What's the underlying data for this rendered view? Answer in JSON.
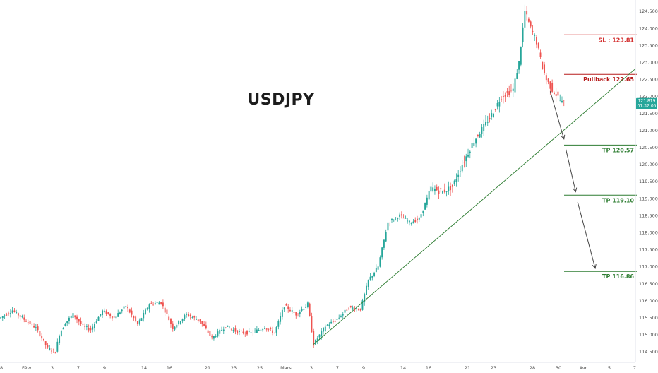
{
  "chart_data": {
    "type": "candlestick",
    "title": "USDJPY",
    "ylim": [
      114.25,
      124.75
    ],
    "y_ticks": [
      "114.500",
      "115.000",
      "115.500",
      "116.000",
      "116.500",
      "117.000",
      "117.500",
      "118.000",
      "118.500",
      "119.000",
      "119.500",
      "120.000",
      "120.500",
      "121.000",
      "121.500",
      "122.000",
      "122.500",
      "123.000",
      "123.500",
      "124.000",
      "124.500"
    ],
    "x_ticks": [
      "28",
      "Févr",
      "3",
      "7",
      "9",
      "14",
      "16",
      "21",
      "23",
      "25",
      "Mars",
      "3",
      "7",
      "9",
      "14",
      "16",
      "21",
      "23",
      "28",
      "30",
      "Avr",
      "5",
      "7"
    ],
    "current_price": {
      "value": "121.819",
      "countdown": "01:32:05",
      "color": "#26a69a"
    },
    "levels": [
      {
        "name": "SL : 123.81",
        "value": 123.81,
        "color": "#d32f2f"
      },
      {
        "name": "Pullback 122.65",
        "value": 122.65,
        "color": "#b71c1c"
      },
      {
        "name": "TP 120.57",
        "value": 120.57,
        "color": "#2e7d32"
      },
      {
        "name": "TP 119.10",
        "value": 119.1,
        "color": "#2e7d32"
      },
      {
        "name": "TP 116.86",
        "value": 116.86,
        "color": "#2e7d32"
      }
    ],
    "trendline": {
      "start": {
        "bar": 160,
        "price": 114.72
      },
      "end": {
        "bar": 305,
        "price": 121.85
      },
      "color": "#2e7d32"
    },
    "arrows": [
      {
        "from": {
          "bar": 281,
          "price": 122.15
        },
        "to": {
          "bar": 288,
          "price": 120.75
        }
      },
      {
        "from": {
          "bar": 289,
          "price": 120.45
        },
        "to": {
          "bar": 294,
          "price": 119.2
        }
      },
      {
        "from": {
          "bar": 295,
          "price": 118.9
        },
        "to": {
          "bar": 304,
          "price": 116.95
        }
      }
    ],
    "bull_color": "#26a69a",
    "bear_color": "#ef5350",
    "close_path": [
      [
        0,
        115.5
      ],
      [
        6,
        115.72
      ],
      [
        12,
        115.45
      ],
      [
        18,
        115.2
      ],
      [
        24,
        114.6
      ],
      [
        28,
        114.5
      ],
      [
        30,
        115.02
      ],
      [
        33,
        115.35
      ],
      [
        37,
        115.6
      ],
      [
        42,
        115.25
      ],
      [
        46,
        115.15
      ],
      [
        52,
        115.7
      ],
      [
        58,
        115.5
      ],
      [
        64,
        115.85
      ],
      [
        70,
        115.3
      ],
      [
        76,
        115.9
      ],
      [
        82,
        115.95
      ],
      [
        88,
        115.2
      ],
      [
        95,
        115.6
      ],
      [
        102,
        115.4
      ],
      [
        108,
        114.9
      ],
      [
        115,
        115.25
      ],
      [
        121,
        115.08
      ],
      [
        128,
        115.05
      ],
      [
        135,
        115.22
      ],
      [
        140,
        115.05
      ],
      [
        145,
        115.85
      ],
      [
        151,
        115.6
      ],
      [
        157,
        115.9
      ],
      [
        160,
        114.72
      ],
      [
        166,
        115.25
      ],
      [
        172,
        115.45
      ],
      [
        178,
        115.8
      ],
      [
        184,
        115.75
      ],
      [
        188,
        116.6
      ],
      [
        193,
        117.0
      ],
      [
        198,
        118.3
      ],
      [
        204,
        118.5
      ],
      [
        209,
        118.3
      ],
      [
        214,
        118.4
      ],
      [
        220,
        119.3
      ],
      [
        226,
        119.2
      ],
      [
        231,
        119.35
      ],
      [
        236,
        120.0
      ],
      [
        242,
        120.7
      ],
      [
        248,
        121.2
      ],
      [
        252,
        121.55
      ],
      [
        256,
        122.0
      ],
      [
        259,
        122.1
      ],
      [
        262,
        122.2
      ],
      [
        265,
        123.0
      ],
      [
        268,
        124.5
      ],
      [
        271,
        124.0
      ],
      [
        274,
        123.6
      ],
      [
        277,
        122.85
      ],
      [
        279,
        122.5
      ],
      [
        282,
        122.2
      ],
      [
        285,
        121.98
      ],
      [
        287,
        121.82
      ]
    ]
  }
}
